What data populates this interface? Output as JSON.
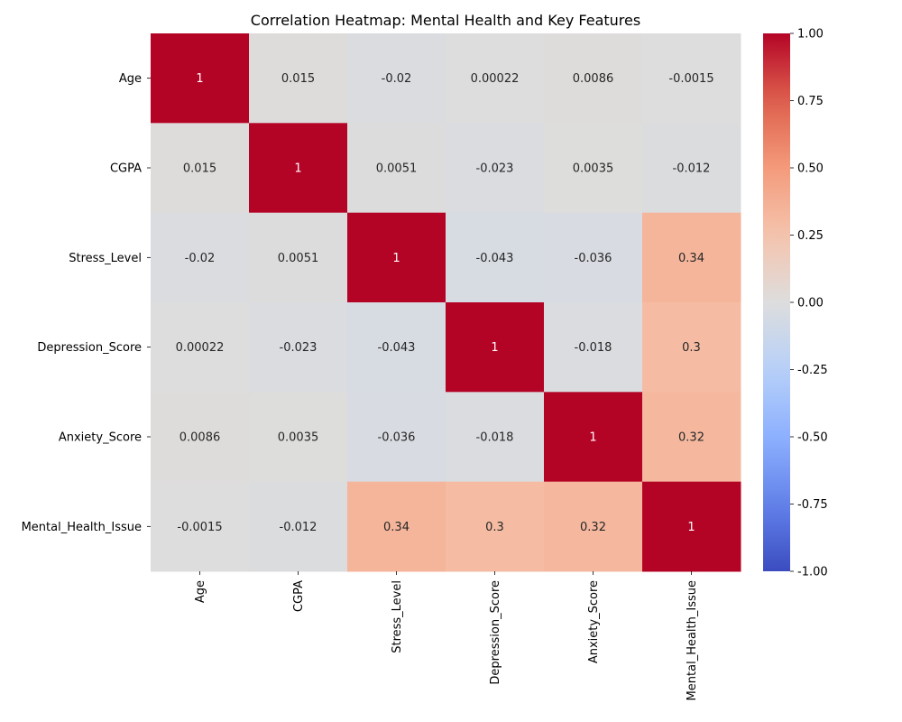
{
  "chart_data": {
    "type": "heatmap",
    "title": "Correlation Heatmap: Mental Health and Key Features",
    "rows": [
      "Age",
      "CGPA",
      "Stress_Level",
      "Depression_Score",
      "Anxiety_Score",
      "Mental_Health_Issue"
    ],
    "columns": [
      "Age",
      "CGPA",
      "Stress_Level",
      "Depression_Score",
      "Anxiety_Score",
      "Mental_Health_Issue"
    ],
    "values": [
      [
        1,
        0.015,
        -0.02,
        0.00022,
        0.0086,
        -0.0015
      ],
      [
        0.015,
        1,
        0.0051,
        -0.023,
        0.0035,
        -0.012
      ],
      [
        -0.02,
        0.0051,
        1,
        -0.043,
        -0.036,
        0.34
      ],
      [
        0.00022,
        -0.023,
        -0.043,
        1,
        -0.018,
        0.3
      ],
      [
        0.0086,
        0.0035,
        -0.036,
        -0.018,
        1,
        0.32
      ],
      [
        -0.0015,
        -0.012,
        0.34,
        0.3,
        0.32,
        1
      ]
    ],
    "labels": [
      [
        "1",
        "0.015",
        "-0.02",
        "0.00022",
        "0.0086",
        "-0.0015"
      ],
      [
        "0.015",
        "1",
        "0.0051",
        "-0.023",
        "0.0035",
        "-0.012"
      ],
      [
        "-0.02",
        "0.0051",
        "1",
        "-0.043",
        "-0.036",
        "0.34"
      ],
      [
        "0.00022",
        "-0.023",
        "-0.043",
        "1",
        "-0.018",
        "0.3"
      ],
      [
        "0.0086",
        "0.0035",
        "-0.036",
        "-0.018",
        "1",
        "0.32"
      ],
      [
        "-0.0015",
        "-0.012",
        "0.34",
        "0.3",
        "0.32",
        "1"
      ]
    ],
    "colormap": "coolwarm",
    "vmin": -1,
    "vmax": 1,
    "colorbar_ticks": [
      "1.00",
      "0.75",
      "0.50",
      "0.25",
      "0.00",
      "-0.25",
      "-0.50",
      "-0.75",
      "-1.00"
    ],
    "colorbar_tick_values": [
      1,
      0.75,
      0.5,
      0.25,
      0,
      -0.25,
      -0.5,
      -0.75,
      -1
    ],
    "grid": false,
    "legend": "colorbar-right"
  }
}
